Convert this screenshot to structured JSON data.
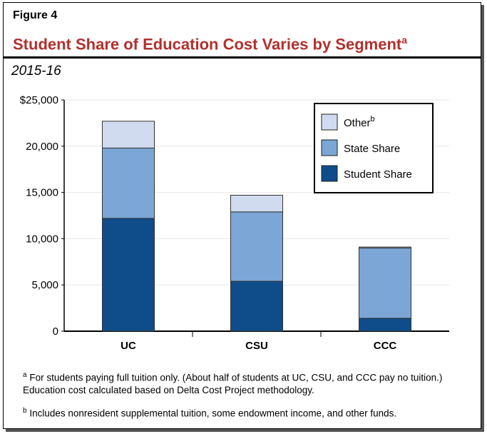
{
  "figure_label": "Figure 4",
  "title": "Student Share of Education Cost Varies by Segment",
  "title_note": "a",
  "subtitle": "2015-16",
  "chart_data": {
    "type": "bar",
    "stacked": true,
    "categories": [
      "UC",
      "CSU",
      "CCC"
    ],
    "series": [
      {
        "name": "Student Share",
        "values": [
          12200,
          5400,
          1400
        ],
        "color": "#0f4c8a"
      },
      {
        "name": "State Share",
        "values": [
          7600,
          7500,
          7600
        ],
        "color": "#7ba6d6"
      },
      {
        "name": "Other",
        "note": "b",
        "values": [
          2900,
          1800,
          100
        ],
        "color": "#d0dbf0"
      }
    ],
    "ylim": [
      0,
      25000
    ],
    "yticks": [
      "0",
      "5,000",
      "10,000",
      "15,000",
      "20,000",
      "$25,000"
    ],
    "grid": true,
    "legend": "top-right"
  },
  "footnotes": [
    {
      "mark": "a",
      "text": "For students paying full tuition only. (About half of students at UC, CSU, and CCC pay no tuition.) Education cost calculated based on Delta Cost Project methodology."
    },
    {
      "mark": "b",
      "text": "Includes nonresident supplemental tuition, some endowment income, and other funds."
    }
  ]
}
